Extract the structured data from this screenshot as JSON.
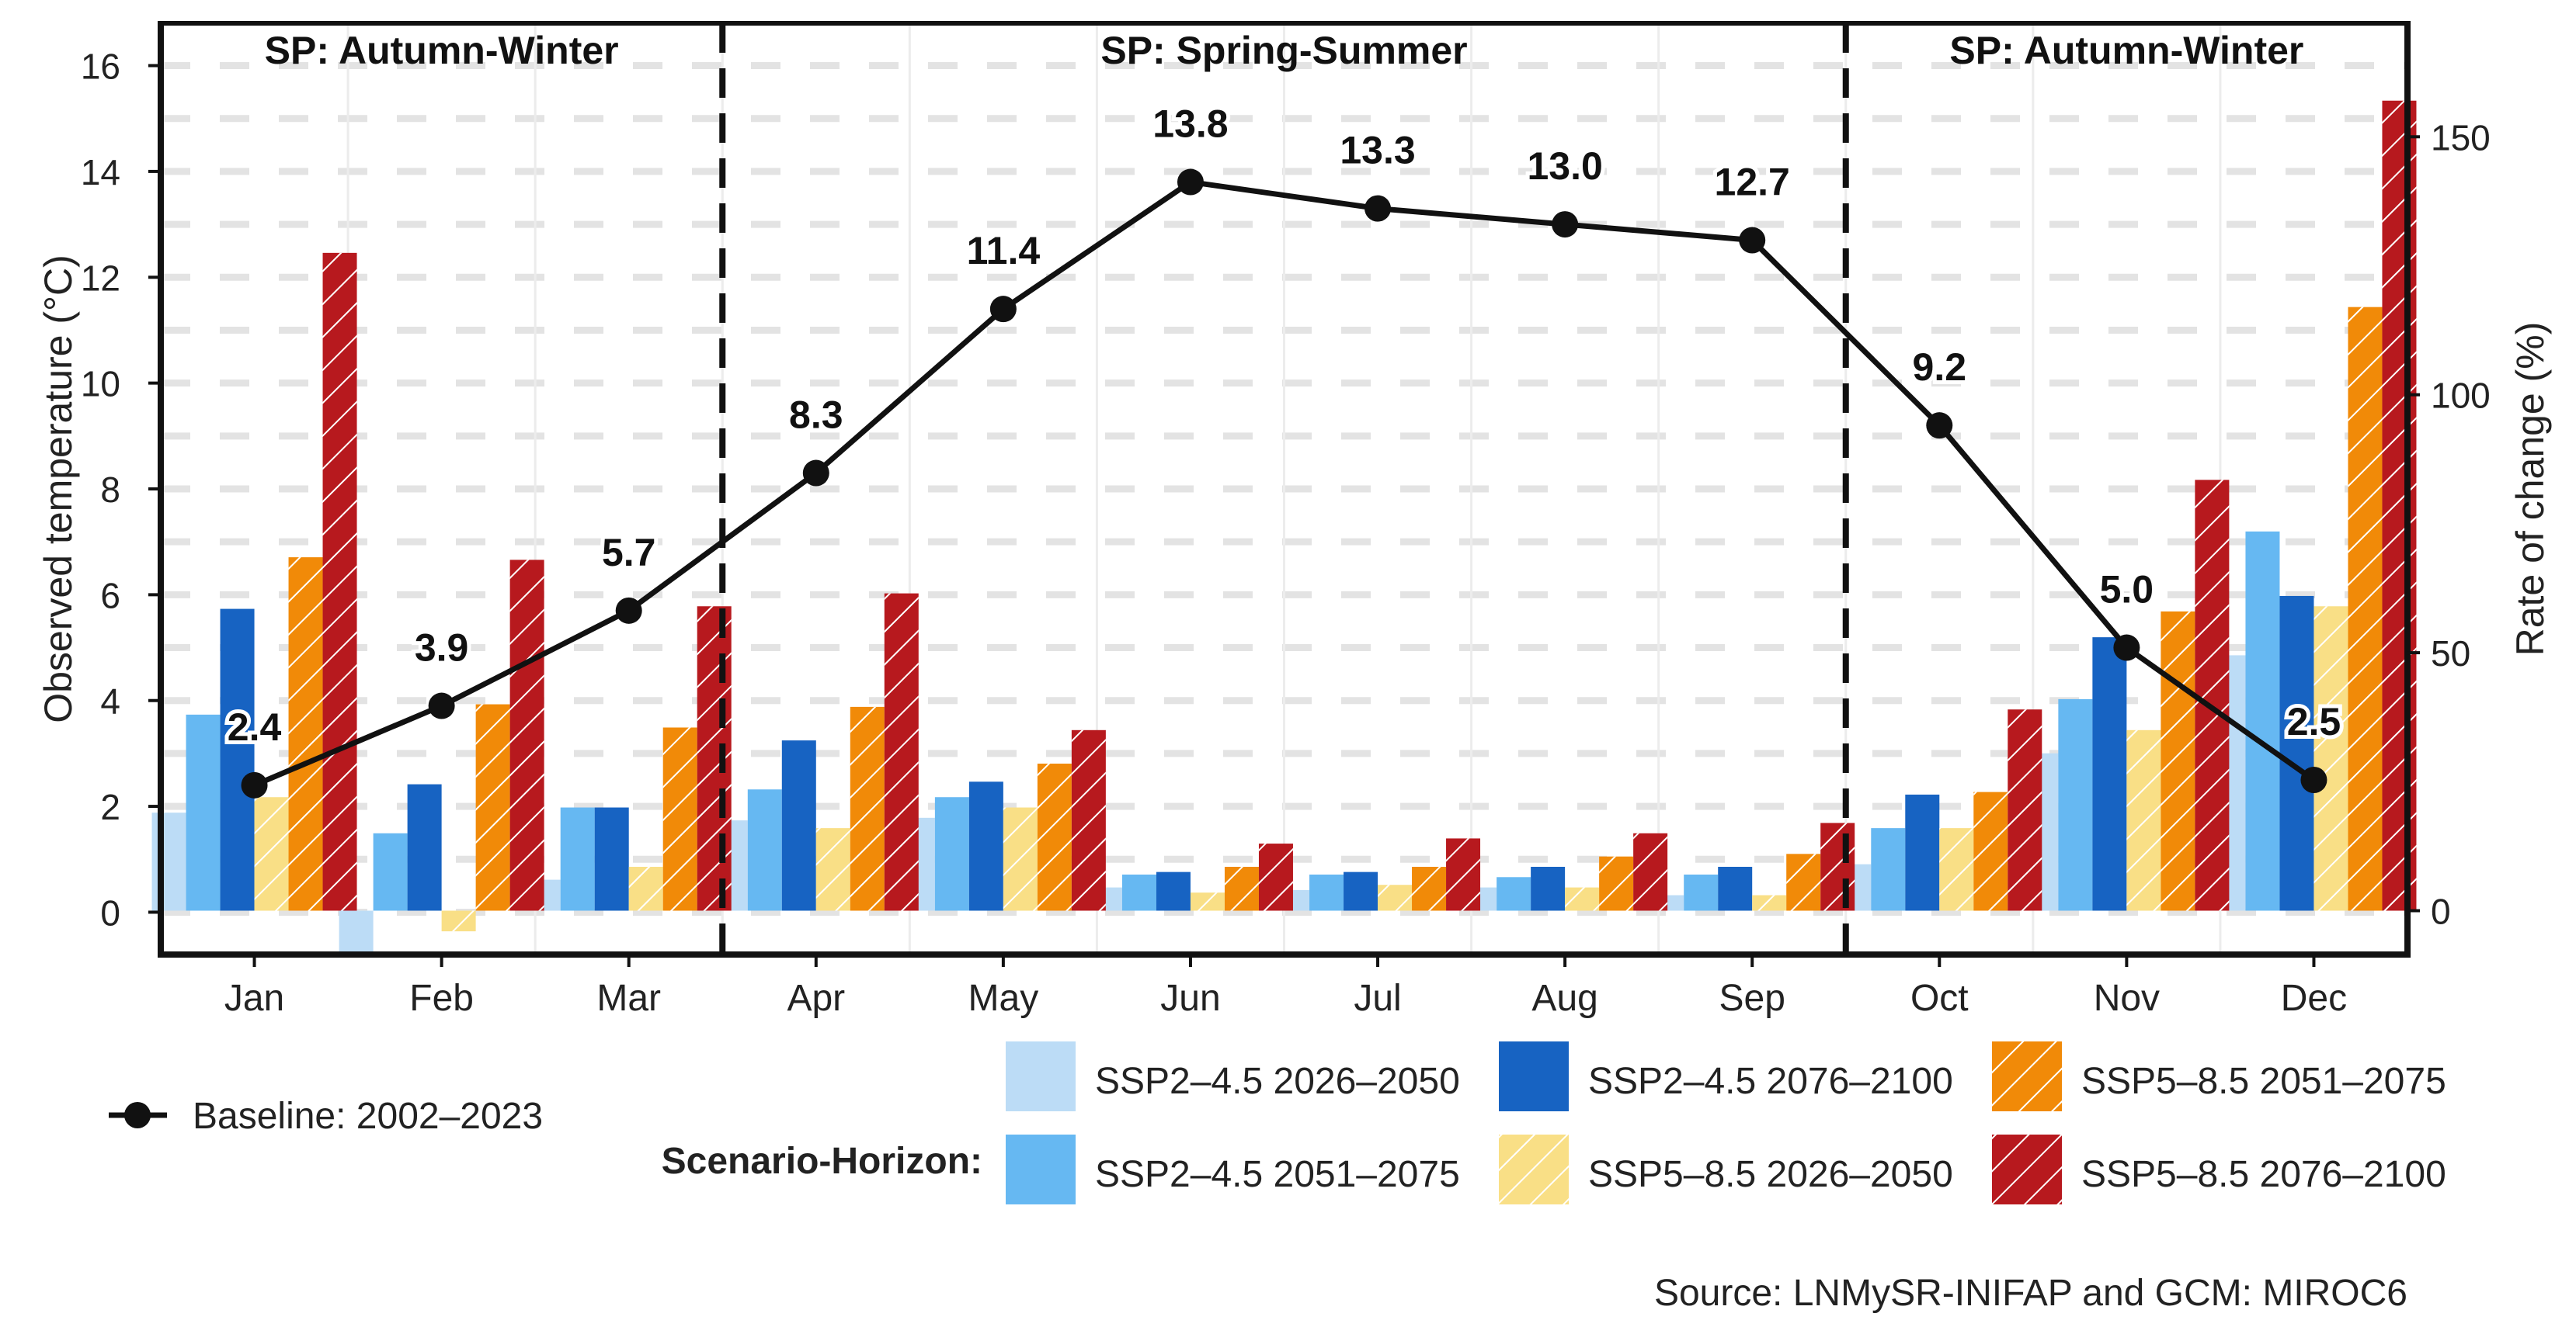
{
  "chart_data": {
    "type": "bar+line",
    "y_left_label": "Observed temperature (°C)",
    "y_right_label": "Rate of change (%)",
    "y_left_range": [
      -0.8,
      16.8
    ],
    "y_right_range": [
      -8.5,
      172
    ],
    "y_left_ticks": [
      0,
      2,
      4,
      6,
      8,
      10,
      12,
      14,
      16
    ],
    "y_right_ticks": [
      0,
      50,
      100,
      150
    ],
    "categories": [
      "Jan",
      "Feb",
      "Mar",
      "Apr",
      "May",
      "Jun",
      "Jul",
      "Aug",
      "Sep",
      "Oct",
      "Nov",
      "Dec"
    ],
    "periods": [
      {
        "label": "SP: Autumn-Winter",
        "start_index": 0,
        "end_index": 2
      },
      {
        "label": "SP: Spring-Summer",
        "start_index": 3,
        "end_index": 8
      },
      {
        "label": "SP: Autumn-Winter",
        "start_index": 9,
        "end_index": 11
      }
    ],
    "baseline": {
      "name": "Baseline: 2002–2023",
      "values": [
        2.4,
        3.9,
        5.7,
        8.3,
        11.4,
        13.8,
        13.3,
        13.0,
        12.7,
        9.2,
        5.0,
        2.5
      ],
      "labels": [
        "2.4",
        "3.9",
        "5.7",
        "8.3",
        "11.4",
        "13.8",
        "13.3",
        "13.0",
        "12.7",
        "9.2",
        "5.0",
        "2.5"
      ]
    },
    "series": [
      {
        "name": "SSP2–4.5 2026–2050",
        "color": "#bcdcf6",
        "hatch": false,
        "values": [
          19,
          -9,
          6,
          17.5,
          18,
          4.5,
          4,
          4.5,
          3,
          9,
          30.5,
          49.5
        ]
      },
      {
        "name": "SSP2–4.5 2051–2075",
        "color": "#66b8f2",
        "hatch": false,
        "values": [
          38,
          15,
          20,
          23.5,
          22,
          7,
          7,
          6.5,
          7,
          16,
          41,
          73.5
        ]
      },
      {
        "name": "SSP2–4.5 2076–2100",
        "color": "#1763c2",
        "hatch": false,
        "values": [
          58.5,
          24.5,
          20,
          33,
          25,
          7.5,
          7.5,
          8.5,
          8.5,
          22.5,
          53,
          61
        ]
      },
      {
        "name": "SSP5–8.5 2026–2050",
        "color": "#f9df86",
        "hatch": true,
        "values": [
          22,
          -4,
          8.5,
          16,
          20,
          3.5,
          5,
          4.5,
          3,
          16,
          35,
          59
        ]
      },
      {
        "name": "SSP5–8.5 2051–2075",
        "color": "#f18a08",
        "hatch": true,
        "values": [
          68.5,
          40,
          35.5,
          39.5,
          28.5,
          8.5,
          8.5,
          10.5,
          11,
          23,
          58,
          117
        ]
      },
      {
        "name": "SSP5–8.5 2076–2100",
        "color": "#b7191e",
        "hatch": true,
        "values": [
          127.5,
          68,
          59,
          61.5,
          35,
          13,
          14,
          15,
          17,
          39,
          83.5,
          157
        ]
      }
    ],
    "legend_title": "Scenario-Horizon:",
    "source": "Source: LNMySR-INIFAP and GCM: MIROC6"
  }
}
